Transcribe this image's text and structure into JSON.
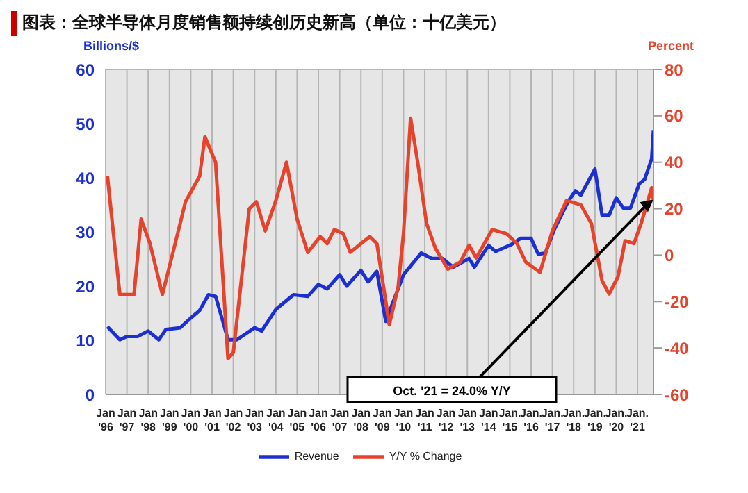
{
  "chart_data": {
    "type": "line",
    "title": "图表：全球半导体月度销售额持续创历史新高（单位：十亿美元）",
    "ylabel": "Billions/$",
    "y2label": "Percent",
    "xlim": [
      "1996-01",
      "2021-10"
    ],
    "xticks": [
      {
        "value": "1996-01",
        "label": "Jan\n'96"
      },
      {
        "value": "1997-01",
        "label": "Jan\n'97"
      },
      {
        "value": "1998-01",
        "label": "Jan\n'98"
      },
      {
        "value": "1999-01",
        "label": "Jan\n'99"
      },
      {
        "value": "2000-01",
        "label": "Jan\n'00"
      },
      {
        "value": "2001-01",
        "label": "Jan\n'01"
      },
      {
        "value": "2002-01",
        "label": "Jan\n'02"
      },
      {
        "value": "2003-01",
        "label": "Jan\n'03"
      },
      {
        "value": "2004-01",
        "label": "Jan\n'04"
      },
      {
        "value": "2005-01",
        "label": "Jan\n'05"
      },
      {
        "value": "2006-01",
        "label": "Jan\n'06"
      },
      {
        "value": "2007-01",
        "label": "Jan\n'07"
      },
      {
        "value": "2008-01",
        "label": "Jan\n'08"
      },
      {
        "value": "2009-01",
        "label": "Jan\n'09"
      },
      {
        "value": "2010-01",
        "label": "Jan\n'10"
      },
      {
        "value": "2011-01",
        "label": "Jan\n'11"
      },
      {
        "value": "2012-01",
        "label": "Jan\n'12"
      },
      {
        "value": "2013-01",
        "label": "Jan\n'13"
      },
      {
        "value": "2014-01",
        "label": "Jan\n'14"
      },
      {
        "value": "2015-01",
        "label": "Jan.\n'15"
      },
      {
        "value": "2016-01",
        "label": "Jan.\n'16"
      },
      {
        "value": "2017-01",
        "label": "Jan.\n'17"
      },
      {
        "value": "2018-01",
        "label": "Jan.\n'18"
      },
      {
        "value": "2019-01",
        "label": "Jan.\n'19"
      },
      {
        "value": "2020-01",
        "label": "Jan.\n'20"
      },
      {
        "value": "2021-01",
        "label": "Jan.\n'21"
      }
    ],
    "ylim": [
      0,
      60
    ],
    "yticks": [
      0,
      10,
      20,
      30,
      40,
      50,
      60
    ],
    "y2lim": [
      -60,
      80
    ],
    "y2ticks": [
      -60,
      -40,
      -20,
      0,
      20,
      40,
      60,
      80
    ],
    "grid": true,
    "legend": "bottom",
    "line_style": "solid",
    "marker": "none",
    "series": [
      {
        "name": "Revenue",
        "color": "#1c2fd1",
        "x": [
          "1996-02",
          "1996-09",
          "1997-01",
          "1997-07",
          "1998-01",
          "1998-07",
          "1998-11",
          "1999-07",
          "2000-01",
          "2000-06",
          "2000-11",
          "2001-03",
          "2001-07",
          "2001-10",
          "2002-03",
          "2003-01",
          "2003-05",
          "2004-01",
          "2004-11",
          "2005-07",
          "2006-01",
          "2006-06",
          "2007-01",
          "2007-05",
          "2008-01",
          "2008-05",
          "2008-10",
          "2009-03",
          "2010-01",
          "2010-11",
          "2011-05",
          "2011-11",
          "2012-05",
          "2013-02",
          "2013-05",
          "2014-01",
          "2014-05",
          "2015-02",
          "2015-07",
          "2016-01",
          "2016-05",
          "2016-09",
          "2017-02",
          "2017-10",
          "2018-02",
          "2018-05",
          "2019-01",
          "2019-05",
          "2019-09",
          "2020-01",
          "2020-05",
          "2020-09",
          "2021-02",
          "2021-05",
          "2021-09",
          "2021-10"
        ],
        "values": [
          12.5,
          10.1,
          10.7,
          10.7,
          11.7,
          10.1,
          12,
          12.3,
          14.1,
          15.5,
          18.4,
          18.1,
          13.6,
          10.1,
          10.1,
          12.3,
          11.7,
          15.7,
          18.4,
          18.1,
          20.3,
          19.5,
          22.1,
          20,
          22.9,
          20.8,
          22.7,
          13.5,
          22.1,
          26.1,
          25.1,
          25.1,
          23.5,
          25.1,
          23.5,
          27.5,
          26.4,
          27.7,
          28.8,
          28.8,
          25.9,
          26.1,
          30.4,
          35.7,
          37.6,
          36.8,
          41.6,
          33.1,
          33.1,
          36.3,
          34.4,
          34.4,
          38.9,
          39.7,
          43.5,
          48.8
        ]
      },
      {
        "name": "Y/Y % Change",
        "color": "#e5432c",
        "axis": "y2",
        "x": [
          "1996-02",
          "1996-09",
          "1997-05",
          "1997-09",
          "1998-02",
          "1998-09",
          "1999-05",
          "1999-10",
          "2000-06",
          "2000-09",
          "2001-03",
          "2001-10",
          "2002-01",
          "2002-10",
          "2003-02",
          "2003-07",
          "2004-01",
          "2004-07",
          "2005-01",
          "2005-07",
          "2006-02",
          "2006-06",
          "2006-10",
          "2007-03",
          "2007-07",
          "2008-01",
          "2008-06",
          "2008-10",
          "2009-05",
          "2009-10",
          "2010-01",
          "2010-05",
          "2010-09",
          "2011-02",
          "2011-07",
          "2012-02",
          "2012-09",
          "2013-02",
          "2013-06",
          "2014-03",
          "2014-11",
          "2015-05",
          "2015-10",
          "2016-06",
          "2017-01",
          "2017-09",
          "2018-05",
          "2018-11",
          "2019-05",
          "2019-09",
          "2020-02",
          "2020-06",
          "2020-11",
          "2021-03",
          "2021-09",
          "2021-10"
        ],
        "values": [
          34,
          -17,
          -17,
          15.5,
          5,
          -17,
          7.4,
          23,
          34,
          51,
          40,
          -44.6,
          -42,
          20,
          23,
          10.5,
          23.5,
          40,
          15.5,
          1.2,
          8,
          5,
          11,
          9.3,
          1.2,
          5,
          8,
          5,
          -30,
          -13.6,
          9.3,
          59,
          40,
          13.6,
          3,
          -6,
          -3,
          4.3,
          -1.2,
          11,
          9.3,
          5,
          -3,
          -7.4,
          10.5,
          23.5,
          21.7,
          13.6,
          -11,
          -16.7,
          -9.3,
          6.2,
          5,
          13.6,
          29,
          24
        ]
      }
    ],
    "annotations": [
      "Oct. '21 = 24.0% Y/Y"
    ]
  }
}
